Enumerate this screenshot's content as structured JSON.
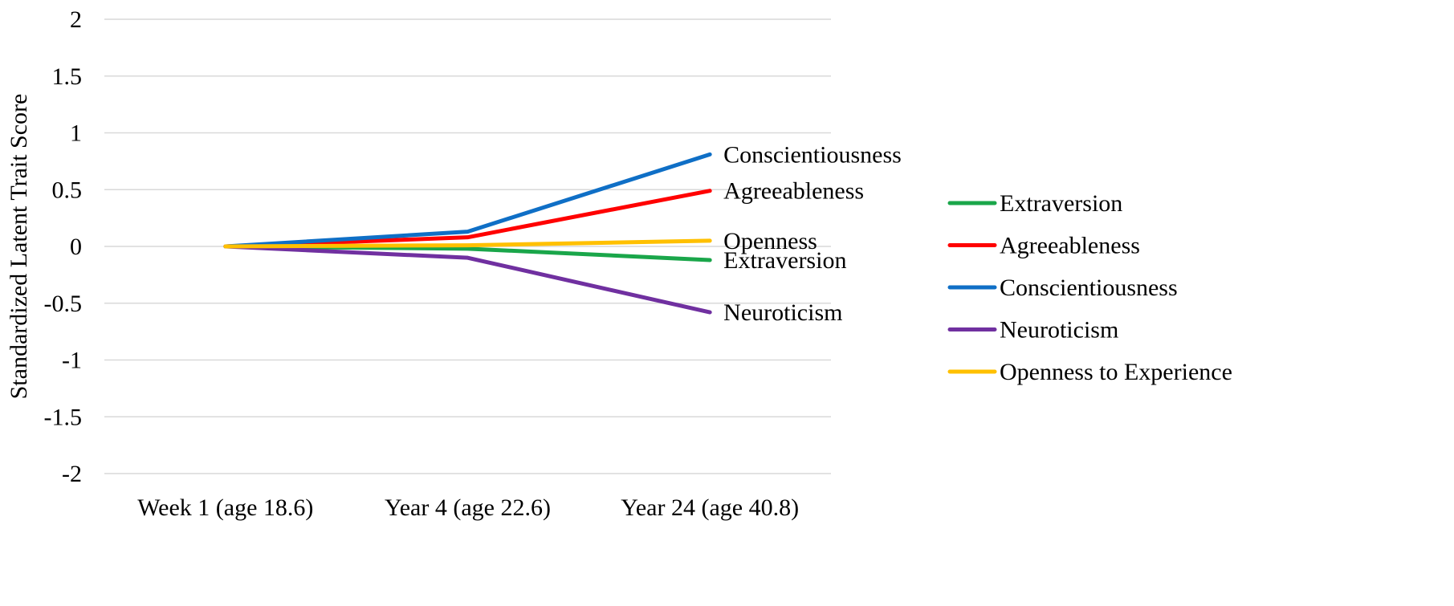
{
  "chart_data": {
    "type": "line",
    "title": "",
    "xlabel": "",
    "ylabel": "Standardized Latent Trait Score",
    "categories": [
      "Week 1 (age 18.6)",
      "Year 4 (age 22.6)",
      "Year 24 (age 40.8)"
    ],
    "ylim": [
      -2,
      2
    ],
    "yticks": [
      "2",
      "1.5",
      "1",
      "0.5",
      "0",
      "-0.5",
      "-1",
      "-1.5",
      "-2"
    ],
    "ytick_values": [
      2,
      1.5,
      1,
      0.5,
      0,
      -0.5,
      -1,
      -1.5,
      -2
    ],
    "grid": true,
    "legend_position": "right",
    "series": [
      {
        "name": "Extraversion",
        "end_label": "Extraversion",
        "color": "#1aa64a",
        "values": [
          0,
          -0.02,
          -0.12
        ]
      },
      {
        "name": "Agreeableness",
        "end_label": "Agreeableness",
        "color": "#ff0000",
        "values": [
          0,
          0.08,
          0.49
        ]
      },
      {
        "name": "Conscientiousness",
        "end_label": "Conscientiousness",
        "color": "#0f6fc6",
        "values": [
          0,
          0.13,
          0.81
        ]
      },
      {
        "name": "Neuroticism",
        "end_label": "Neuroticism",
        "color": "#7030a0",
        "values": [
          0,
          -0.1,
          -0.58
        ]
      },
      {
        "name": "Openness to Experience",
        "end_label": "Openness",
        "color": "#ffc000",
        "values": [
          0,
          0.01,
          0.05
        ]
      }
    ]
  }
}
